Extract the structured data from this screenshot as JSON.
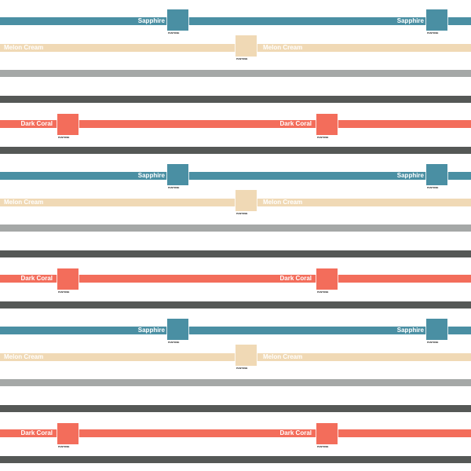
{
  "brand_label": "PANTONE",
  "colors": {
    "sapphire": {
      "name": "Sapphire",
      "hex": "#4a8fa3"
    },
    "melon_cream": {
      "name": "Melon Cream",
      "hex": "#f0d9b5"
    },
    "gray": {
      "hex": "#a5a8a7"
    },
    "charcoal": {
      "hex": "#555856"
    },
    "dark_coral": {
      "name": "Dark Coral",
      "hex": "#f36d5b"
    }
  },
  "repeats": 3
}
